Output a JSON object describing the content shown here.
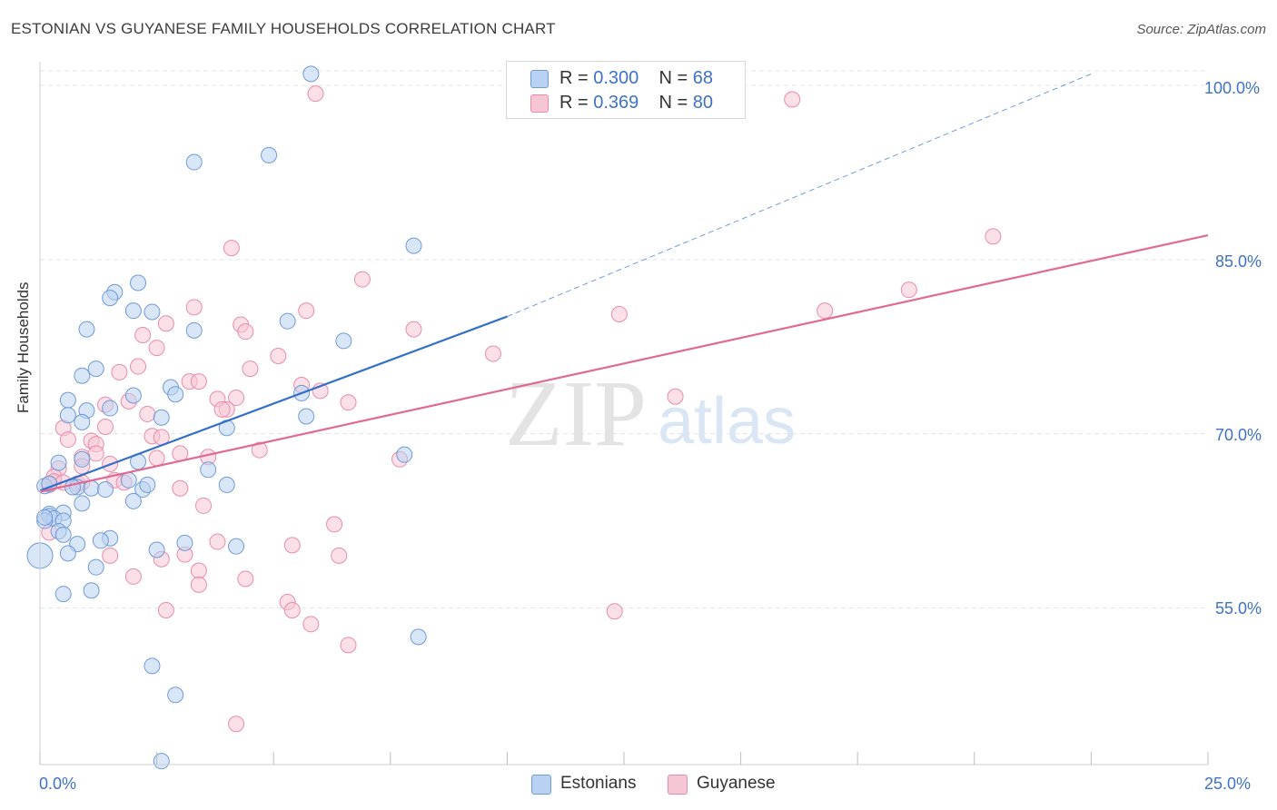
{
  "header": {
    "title": "ESTONIAN VS GUYANESE FAMILY HOUSEHOLDS CORRELATION CHART",
    "source": "Source: ZipAtlas.com"
  },
  "watermark": {
    "zip": "ZIP",
    "atlas": "atlas"
  },
  "legend_top": [
    {
      "r_label": "R =",
      "r_value": "0.300",
      "n_label": "N =",
      "n_value": "68"
    },
    {
      "r_label": "R =",
      "r_value": "0.369",
      "n_label": "N =",
      "n_value": "80"
    }
  ],
  "legend_bottom": [
    "Estonians",
    "Guyanese"
  ],
  "colors": {
    "estonians_fill": "#b9d1f2",
    "estonians_stroke": "#6f9ad6",
    "estonians_line": "#3470c9",
    "guyanese_fill": "#f7c6d5",
    "guyanese_stroke": "#e88cab",
    "guyanese_line": "#e06a94",
    "tick_text": "#3d72c7",
    "grid": "#e3e3e3"
  },
  "chart_data": {
    "type": "scatter",
    "title": "ESTONIAN VS GUYANESE FAMILY HOUSEHOLDS CORRELATION CHART",
    "xlabel": "",
    "ylabel": "Family Households",
    "x_tick_labels": [
      "0.0%",
      "25.0%"
    ],
    "y_tick_labels": [
      "100.0%",
      "85.0%",
      "70.0%",
      "55.0%"
    ],
    "y_ticks": [
      100,
      85,
      70,
      55
    ],
    "xlim": [
      0,
      25
    ],
    "ylim": [
      41.5,
      101.5
    ],
    "grid": true,
    "legend_placement": "top-center",
    "series": [
      {
        "name": "Estonians",
        "r": 0.3,
        "n": 68,
        "trend": {
          "x": [
            0,
            10
          ],
          "y": [
            65.1,
            80.1
          ],
          "dashed_extension": {
            "x": [
              10,
              22.5
            ],
            "y": [
              80.1,
              101.0
            ]
          }
        },
        "points": [
          [
            5.8,
            101.0
          ],
          [
            4.9,
            94.0
          ],
          [
            3.3,
            93.4
          ],
          [
            8.0,
            86.2
          ],
          [
            2.1,
            83.0
          ],
          [
            1.6,
            82.2
          ],
          [
            1.5,
            81.7
          ],
          [
            2.4,
            80.5
          ],
          [
            2.0,
            80.6
          ],
          [
            1.0,
            79.0
          ],
          [
            5.3,
            79.7
          ],
          [
            3.3,
            78.9
          ],
          [
            6.5,
            78.0
          ],
          [
            1.2,
            75.6
          ],
          [
            0.9,
            75.0
          ],
          [
            2.8,
            74.0
          ],
          [
            2.0,
            73.3
          ],
          [
            2.9,
            73.4
          ],
          [
            5.6,
            73.5
          ],
          [
            0.6,
            72.9
          ],
          [
            1.5,
            72.2
          ],
          [
            1.0,
            72.0
          ],
          [
            0.6,
            71.6
          ],
          [
            0.9,
            71.0
          ],
          [
            2.6,
            71.4
          ],
          [
            5.7,
            71.5
          ],
          [
            4.0,
            70.5
          ],
          [
            7.8,
            68.2
          ],
          [
            0.4,
            67.5
          ],
          [
            2.1,
            67.6
          ],
          [
            0.9,
            67.8
          ],
          [
            3.6,
            66.9
          ],
          [
            1.9,
            66.0
          ],
          [
            0.1,
            65.5
          ],
          [
            0.8,
            65.4
          ],
          [
            1.1,
            65.3
          ],
          [
            0.7,
            65.4
          ],
          [
            1.4,
            65.2
          ],
          [
            2.2,
            65.2
          ],
          [
            2.3,
            65.6
          ],
          [
            0.2,
            65.7
          ],
          [
            4.0,
            65.6
          ],
          [
            0.9,
            64.0
          ],
          [
            2.0,
            64.2
          ],
          [
            0.5,
            63.2
          ],
          [
            0.2,
            63.1
          ],
          [
            0.2,
            62.9
          ],
          [
            0.3,
            62.7
          ],
          [
            0.1,
            62.5
          ],
          [
            0.5,
            62.5
          ],
          [
            0.4,
            61.6
          ],
          [
            0.5,
            61.3
          ],
          [
            1.5,
            61.0
          ],
          [
            3.1,
            60.6
          ],
          [
            1.3,
            60.8
          ],
          [
            0.8,
            60.5
          ],
          [
            4.2,
            60.3
          ],
          [
            2.5,
            60.0
          ],
          [
            0.6,
            59.7
          ],
          [
            0.0,
            59.5
          ],
          [
            1.2,
            58.5
          ],
          [
            0.5,
            56.2
          ],
          [
            1.1,
            56.5
          ],
          [
            8.1,
            52.5
          ],
          [
            2.4,
            50.0
          ],
          [
            2.9,
            47.5
          ],
          [
            2.6,
            41.8
          ],
          [
            0.1,
            62.8
          ]
        ]
      },
      {
        "name": "Guyanese",
        "r": 0.369,
        "n": 80,
        "trend": {
          "x": [
            0,
            25
          ],
          "y": [
            65.0,
            87.1
          ]
        },
        "points": [
          [
            5.9,
            99.3
          ],
          [
            16.1,
            98.8
          ],
          [
            20.4,
            87.0
          ],
          [
            4.1,
            86.0
          ],
          [
            6.9,
            83.3
          ],
          [
            18.6,
            82.4
          ],
          [
            3.3,
            80.9
          ],
          [
            5.7,
            80.6
          ],
          [
            12.4,
            80.3
          ],
          [
            16.8,
            80.6
          ],
          [
            2.7,
            79.5
          ],
          [
            4.3,
            79.4
          ],
          [
            8.0,
            79.0
          ],
          [
            4.4,
            78.8
          ],
          [
            2.2,
            78.5
          ],
          [
            2.5,
            77.4
          ],
          [
            9.7,
            76.9
          ],
          [
            5.1,
            76.7
          ],
          [
            2.1,
            75.8
          ],
          [
            4.5,
            75.6
          ],
          [
            1.7,
            75.3
          ],
          [
            3.2,
            74.5
          ],
          [
            3.4,
            74.5
          ],
          [
            5.6,
            74.2
          ],
          [
            6.0,
            73.7
          ],
          [
            3.8,
            73.0
          ],
          [
            4.2,
            73.1
          ],
          [
            13.6,
            73.2
          ],
          [
            1.9,
            72.8
          ],
          [
            6.6,
            72.7
          ],
          [
            1.4,
            72.5
          ],
          [
            4.0,
            72.1
          ],
          [
            3.9,
            72.1
          ],
          [
            2.3,
            71.7
          ],
          [
            0.5,
            70.5
          ],
          [
            1.4,
            70.6
          ],
          [
            2.4,
            69.8
          ],
          [
            2.6,
            69.7
          ],
          [
            0.6,
            69.5
          ],
          [
            1.1,
            69.4
          ],
          [
            1.2,
            69.1
          ],
          [
            1.2,
            68.3
          ],
          [
            0.9,
            68.0
          ],
          [
            3.0,
            68.3
          ],
          [
            4.7,
            68.6
          ],
          [
            3.6,
            68.0
          ],
          [
            2.5,
            67.9
          ],
          [
            7.7,
            67.8
          ],
          [
            0.9,
            67.2
          ],
          [
            1.5,
            67.4
          ],
          [
            0.4,
            67.0
          ],
          [
            0.3,
            66.3
          ],
          [
            1.6,
            66.0
          ],
          [
            0.8,
            65.7
          ],
          [
            0.2,
            65.6
          ],
          [
            0.3,
            65.9
          ],
          [
            0.5,
            65.8
          ],
          [
            1.8,
            65.8
          ],
          [
            0.9,
            65.8
          ],
          [
            3.0,
            65.3
          ],
          [
            3.5,
            63.8
          ],
          [
            6.3,
            62.2
          ],
          [
            3.8,
            60.7
          ],
          [
            5.4,
            60.4
          ],
          [
            1.5,
            59.5
          ],
          [
            3.1,
            59.6
          ],
          [
            6.4,
            59.5
          ],
          [
            2.6,
            59.2
          ],
          [
            3.4,
            58.2
          ],
          [
            2.0,
            57.7
          ],
          [
            4.4,
            57.5
          ],
          [
            3.4,
            57.0
          ],
          [
            5.3,
            55.5
          ],
          [
            5.4,
            54.8
          ],
          [
            2.7,
            54.8
          ],
          [
            12.3,
            54.7
          ],
          [
            5.8,
            53.6
          ],
          [
            6.6,
            51.8
          ],
          [
            4.2,
            45.0
          ],
          [
            0.2,
            61.5
          ]
        ]
      }
    ]
  }
}
